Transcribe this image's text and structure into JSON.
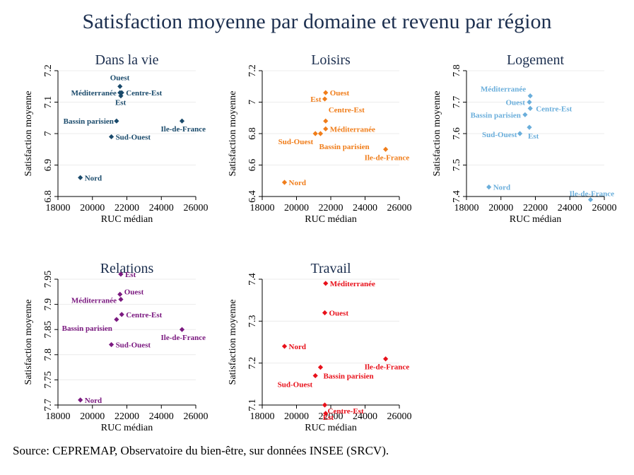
{
  "title": "Satisfaction moyenne par domaine et revenu par région",
  "source": "Source: CEPREMAP, Observatoire du bien-être, sur données INSEE (SRCV).",
  "chart_data": [
    {
      "type": "scatter",
      "title": "Dans la vie",
      "xlabel": "RUC médian",
      "ylabel": "Satisfaction moyenne",
      "color": "#1a4a6b",
      "xlim": [
        18000,
        26000
      ],
      "xticks": [
        18000,
        20000,
        22000,
        24000,
        26000
      ],
      "ylim": [
        6.8,
        7.2
      ],
      "yticks": [
        6.8,
        6.9,
        7,
        7.1,
        7.2
      ],
      "points": [
        {
          "label": "Ouest",
          "x": 21600,
          "y": 7.15
        },
        {
          "label": "Méditerranée",
          "x": 21600,
          "y": 7.13
        },
        {
          "label": "Centre-Est",
          "x": 21700,
          "y": 7.13
        },
        {
          "label": "Est",
          "x": 21650,
          "y": 7.12
        },
        {
          "label": "Bassin parisien",
          "x": 21400,
          "y": 7.04
        },
        {
          "label": "Ile-de-France",
          "x": 25200,
          "y": 7.04
        },
        {
          "label": "Sud-Ouest",
          "x": 21100,
          "y": 6.99
        },
        {
          "label": "Nord",
          "x": 19300,
          "y": 6.86
        }
      ]
    },
    {
      "type": "scatter",
      "title": "Loisirs",
      "xlabel": "RUC médian",
      "ylabel": "Satisfaction moyenne",
      "color": "#f07d1a",
      "xlim": [
        18000,
        26000
      ],
      "xticks": [
        18000,
        20000,
        22000,
        24000,
        26000
      ],
      "ylim": [
        6.4,
        7.2
      ],
      "yticks": [
        6.4,
        6.6,
        6.8,
        7,
        7.2
      ],
      "points": [
        {
          "label": "Ouest",
          "x": 21700,
          "y": 7.06
        },
        {
          "label": "Est",
          "x": 21650,
          "y": 7.02
        },
        {
          "label": "Centre-Est",
          "x": 21700,
          "y": 6.88
        },
        {
          "label": "Méditerranée",
          "x": 21700,
          "y": 6.83
        },
        {
          "label": "Sud-Ouest",
          "x": 21100,
          "y": 6.8
        },
        {
          "label": "Bassin parisien",
          "x": 21400,
          "y": 6.8
        },
        {
          "label": "Ile-de-France",
          "x": 25200,
          "y": 6.7
        },
        {
          "label": "Nord",
          "x": 19300,
          "y": 6.49
        }
      ]
    },
    {
      "type": "scatter",
      "title": "Logement",
      "xlabel": "RUC médian",
      "ylabel": "Satisfaction moyenne",
      "color": "#6aaedb",
      "xlim": [
        18000,
        26000
      ],
      "xticks": [
        18000,
        20000,
        22000,
        24000,
        26000
      ],
      "ylim": [
        7.4,
        7.8
      ],
      "yticks": [
        7.4,
        7.5,
        7.6,
        7.7,
        7.8
      ],
      "points": [
        {
          "label": "Méditerranée",
          "x": 21700,
          "y": 7.72
        },
        {
          "label": "Ouest",
          "x": 21650,
          "y": 7.7
        },
        {
          "label": "Centre-Est",
          "x": 21700,
          "y": 7.68
        },
        {
          "label": "Bassin parisien",
          "x": 21400,
          "y": 7.66
        },
        {
          "label": "Est",
          "x": 21650,
          "y": 7.62
        },
        {
          "label": "Sud-Ouest",
          "x": 21100,
          "y": 7.6
        },
        {
          "label": "Nord",
          "x": 19300,
          "y": 7.43
        },
        {
          "label": "Ile-de-France",
          "x": 25200,
          "y": 7.39
        }
      ]
    },
    {
      "type": "scatter",
      "title": "Relations",
      "xlabel": "RUC médian",
      "ylabel": "Satisfaction moyenne",
      "color": "#7b1a80",
      "xlim": [
        18000,
        26000
      ],
      "xticks": [
        18000,
        20000,
        22000,
        24000,
        26000
      ],
      "ylim": [
        7.7,
        7.95
      ],
      "yticks": [
        7.7,
        7.75,
        7.8,
        7.85,
        7.9,
        7.95
      ],
      "points": [
        {
          "label": "Est",
          "x": 21650,
          "y": 7.96
        },
        {
          "label": "Ouest",
          "x": 21600,
          "y": 7.92
        },
        {
          "label": "Méditerranée",
          "x": 21650,
          "y": 7.91
        },
        {
          "label": "Centre-Est",
          "x": 21700,
          "y": 7.88
        },
        {
          "label": "Bassin parisien",
          "x": 21400,
          "y": 7.87
        },
        {
          "label": "Ile-de-France",
          "x": 25200,
          "y": 7.85
        },
        {
          "label": "Sud-Ouest",
          "x": 21100,
          "y": 7.82
        },
        {
          "label": "Nord",
          "x": 19300,
          "y": 7.71
        }
      ]
    },
    {
      "type": "scatter",
      "title": "Travail",
      "xlabel": "RUC médian",
      "ylabel": "Satisfaction moyenne",
      "color": "#e8101a",
      "xlim": [
        18000,
        26000
      ],
      "xticks": [
        18000,
        20000,
        22000,
        24000,
        26000
      ],
      "ylim": [
        7.1,
        7.4
      ],
      "yticks": [
        7.1,
        7.2,
        7.3,
        7.4
      ],
      "points": [
        {
          "label": "Méditerranée",
          "x": 21700,
          "y": 7.39
        },
        {
          "label": "Ouest",
          "x": 21650,
          "y": 7.32
        },
        {
          "label": "Nord",
          "x": 19300,
          "y": 7.24
        },
        {
          "label": "Ile-de-France",
          "x": 25200,
          "y": 7.21
        },
        {
          "label": "Bassin parisien",
          "x": 21400,
          "y": 7.19
        },
        {
          "label": "Sud-Ouest",
          "x": 21100,
          "y": 7.17
        },
        {
          "label": "Centre-Est",
          "x": 21650,
          "y": 7.1
        },
        {
          "label": "Est",
          "x": 21700,
          "y": 7.08
        }
      ]
    }
  ]
}
